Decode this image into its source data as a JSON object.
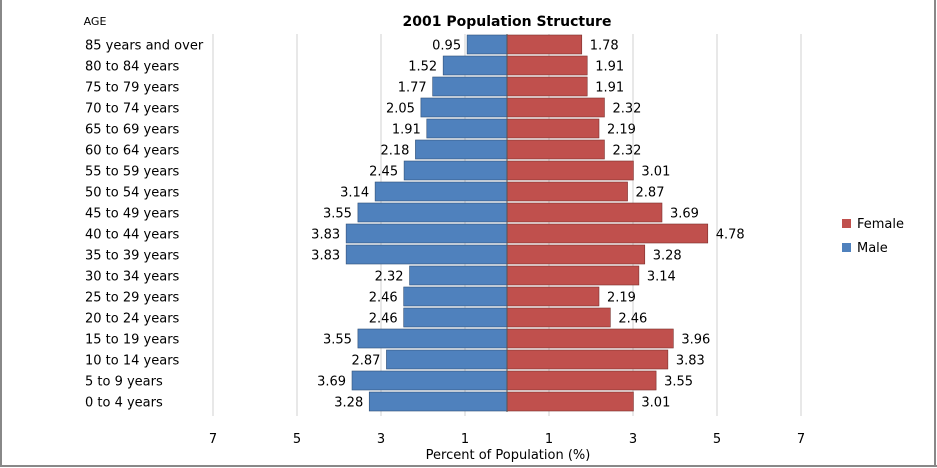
{
  "chart_data": {
    "type": "bar",
    "subtype": "population-pyramid",
    "title": "2001 Population Structure",
    "ylabel": "AGE",
    "xlabel": "Percent of Population (%)",
    "x_ticks": [
      "7",
      "5",
      "3",
      "1",
      "1",
      "3",
      "5",
      "7"
    ],
    "xlim": [
      -7,
      7
    ],
    "legend_position": "right",
    "categories": [
      "85 years and over",
      "80 to 84 years",
      "75 to 79 years",
      "70 to 74 years",
      "65 to 69 years",
      "60 to 64 years",
      "55 to 59 years",
      "50 to 54 years",
      "45 to 49 years",
      "40 to 44 years",
      "35 to 39 years",
      "30 to 34 years",
      "25 to 29 years",
      "20 to 24 years",
      "15 to 19 years",
      "10 to 14 years",
      "5 to 9 years",
      "0 to 4 years"
    ],
    "series": [
      {
        "name": "Male",
        "color": "#4f81bd",
        "values": [
          0.95,
          1.52,
          1.77,
          2.05,
          1.91,
          2.18,
          2.45,
          3.14,
          3.55,
          3.83,
          3.83,
          2.32,
          2.46,
          2.46,
          3.55,
          2.87,
          3.69,
          3.28
        ]
      },
      {
        "name": "Female",
        "color": "#c0504d",
        "values": [
          1.78,
          1.91,
          1.91,
          2.32,
          2.19,
          2.32,
          3.01,
          2.87,
          3.69,
          4.78,
          3.28,
          3.14,
          2.19,
          2.46,
          3.96,
          3.83,
          3.55,
          3.01
        ]
      }
    ],
    "legend": [
      "Female",
      "Male"
    ],
    "grid": true
  }
}
